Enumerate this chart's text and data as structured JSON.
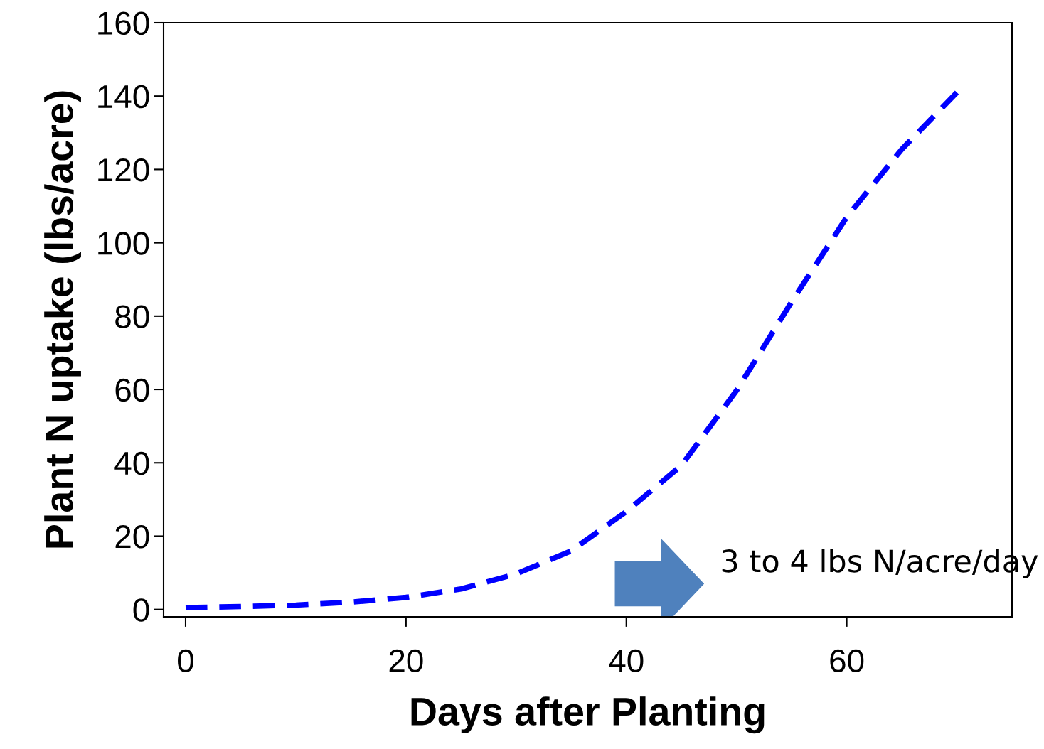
{
  "chart_data": {
    "type": "line",
    "xlabel": "Days after Planting",
    "ylabel": "Plant N uptake (lbs/acre)",
    "x": [
      0,
      5,
      10,
      15,
      20,
      25,
      30,
      35,
      40,
      45,
      50,
      55,
      60,
      65,
      70
    ],
    "series": [
      {
        "color": "#0000ff",
        "values": [
          0.5,
          0.8,
          1.2,
          2,
          3.3,
          5.6,
          9.7,
          16,
          26.7,
          39.3,
          59.7,
          83.9,
          107,
          125.5,
          141
        ]
      }
    ],
    "line_style": "dashed",
    "marker": "none",
    "grid": false,
    "xlim": [
      -2,
      75
    ],
    "ylim": [
      -2,
      160
    ],
    "xticks": [
      0,
      20,
      40,
      60
    ],
    "yticks": [
      0,
      20,
      40,
      60,
      80,
      100,
      120,
      140,
      160
    ],
    "annotations": [
      "3 to 4 lbs N/acre/day"
    ]
  }
}
